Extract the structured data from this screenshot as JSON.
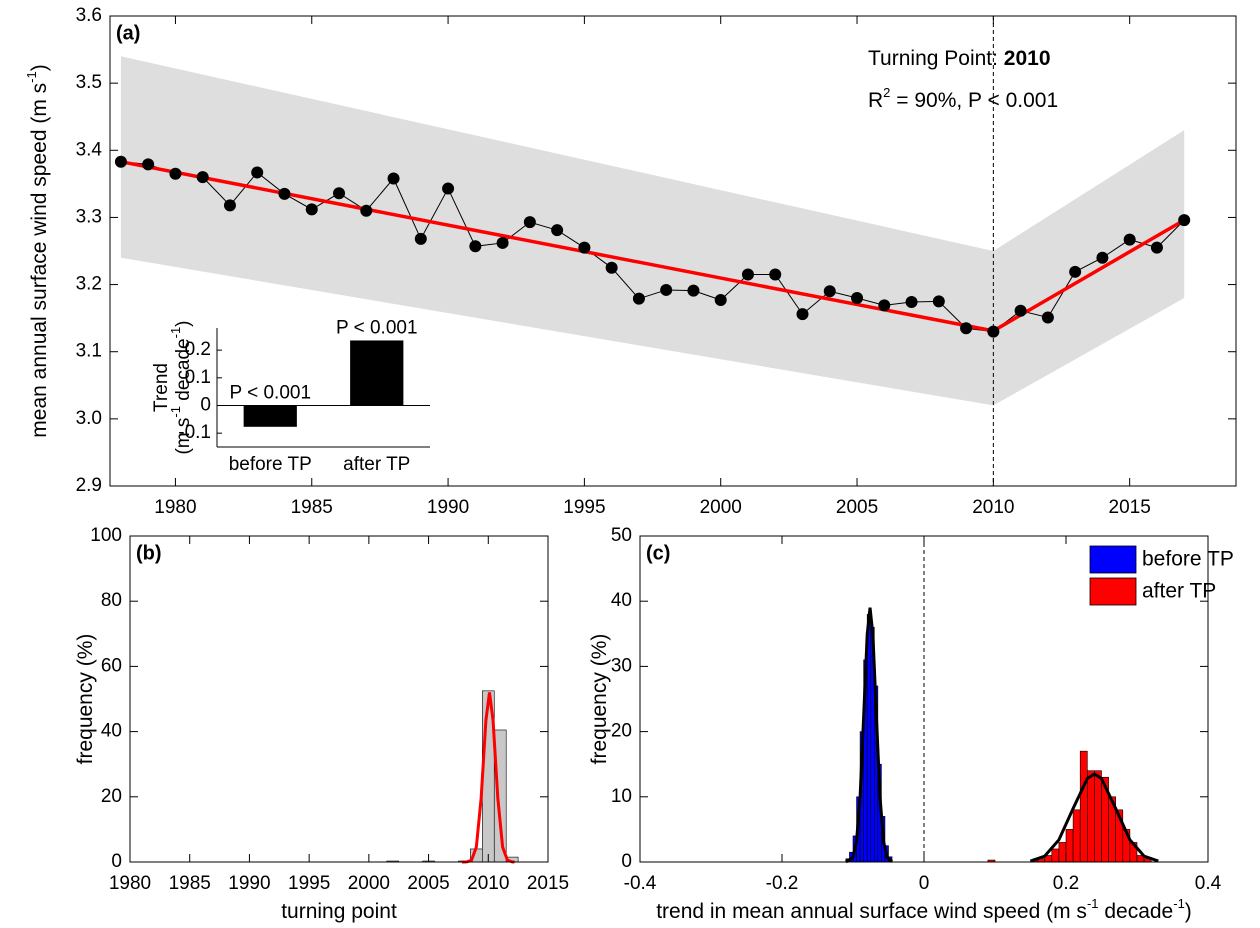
{
  "chart_data": [
    {
      "type": "line",
      "panel_label": "(a)",
      "ylabel_parts": [
        "mean annual surface wind speed (m s",
        "-1",
        ")"
      ],
      "x": [
        1978,
        1979,
        1980,
        1981,
        1982,
        1983,
        1984,
        1985,
        1986,
        1987,
        1988,
        1989,
        1990,
        1991,
        1992,
        1993,
        1994,
        1995,
        1996,
        1997,
        1998,
        1999,
        2000,
        2001,
        2002,
        2003,
        2004,
        2005,
        2006,
        2007,
        2008,
        2009,
        2010,
        2011,
        2012,
        2013,
        2014,
        2015,
        2016,
        2017
      ],
      "series": [
        {
          "color": "#000000",
          "values": [
            3.383,
            3.379,
            3.365,
            3.36,
            3.318,
            3.367,
            3.335,
            3.312,
            3.336,
            3.31,
            3.358,
            3.268,
            3.343,
            3.257,
            3.262,
            3.293,
            3.281,
            3.255,
            3.225,
            3.179,
            3.192,
            3.191,
            3.177,
            3.215,
            3.215,
            3.156,
            3.19,
            3.18,
            3.169,
            3.174,
            3.175,
            3.135,
            3.13,
            3.161,
            3.151,
            3.219,
            3.24,
            3.267,
            3.255,
            3.296
          ]
        },
        {
          "color": "#ff0000",
          "x": [
            1978,
            2010,
            2017
          ],
          "values": [
            3.383,
            3.131,
            3.296
          ]
        }
      ],
      "band": {
        "color": "#dedede",
        "x": [
          1978,
          2010,
          2017
        ],
        "upper": [
          3.54,
          3.25,
          3.43
        ],
        "lower": [
          3.24,
          3.02,
          3.18
        ]
      },
      "turning_point": {
        "label": "Turning Point: ",
        "value": 2010
      },
      "r2_parts": [
        "R",
        "2",
        " = 90%, P < 0.001"
      ],
      "xlim": [
        1977.6,
        2018.9
      ],
      "xticks": [
        1980,
        1985,
        1990,
        1995,
        2000,
        2005,
        2010,
        2015
      ],
      "ylim": [
        2.9,
        3.6
      ],
      "yticks": [
        2.9,
        {
          "value": 3,
          "label": "3.0"
        },
        3.1,
        3.2,
        3.3,
        3.4,
        3.5,
        3.6
      ],
      "inset": {
        "type": "bar",
        "categories": [
          "before TP",
          "after TP"
        ],
        "values": [
          -0.077,
          0.235
        ],
        "color": "#000000",
        "p_labels": [
          "P < 0.001",
          "P < 0.001"
        ],
        "ylabel_lines": [
          [
            "Trend"
          ],
          [
            "(m s",
            "-1",
            " decade",
            "-1",
            ")"
          ]
        ],
        "ylim": [
          -0.15,
          0.28
        ],
        "yticks": [
          -0.1,
          0,
          0.1,
          0.2
        ]
      }
    },
    {
      "type": "histogram",
      "panel_label": "(b)",
      "xlabel_parts": [
        "turning point"
      ],
      "ylabel_parts": [
        "frequency (%)"
      ],
      "series": [
        {
          "color": "#c8c8c8",
          "bins": [
            2001.5,
            2002.5,
            2003.5,
            2004.5,
            2005.5,
            2006.5,
            2007.5,
            2008.5,
            2009.5,
            2010.5,
            2011.5,
            2012.5
          ],
          "values": [
            0.3,
            0,
            0,
            0.3,
            0,
            0,
            0.3,
            4,
            52.5,
            40.5,
            1.5
          ]
        }
      ],
      "fits": [
        {
          "color": "#ff0000",
          "x": [
            2007.8,
            2008.2,
            2008.6,
            2009,
            2009.4,
            2009.8,
            2010.1,
            2010.4,
            2010.8,
            2011.2,
            2011.6,
            2012,
            2012.2
          ],
          "values": [
            0,
            0.04,
            0.58,
            4.6,
            19.5,
            43.4,
            52,
            43.4,
            19.5,
            4.6,
            0.58,
            0.04,
            0
          ]
        }
      ],
      "xlim": [
        1980,
        2015
      ],
      "xticks": [
        1980,
        1985,
        1990,
        1995,
        2000,
        2005,
        2010,
        2015
      ],
      "ylim": [
        0,
        100
      ],
      "yticks": [
        0,
        20,
        40,
        60,
        80,
        100
      ]
    },
    {
      "type": "histogram",
      "panel_label": "(c)",
      "xlabel_parts": [
        "trend in mean annual surface wind speed (m s",
        "-1",
        " decade",
        "-1",
        ")"
      ],
      "ylabel_parts": [
        "frequency (%)"
      ],
      "series": [
        {
          "name": "before TP",
          "color": "#0000ff",
          "bins": [
            -0.11,
            -0.105,
            -0.1,
            -0.095,
            -0.09,
            -0.085,
            -0.08,
            -0.075,
            -0.07,
            -0.065,
            -0.06,
            -0.055,
            -0.05,
            -0.045
          ],
          "values": [
            0.5,
            1.5,
            4,
            10,
            20,
            31,
            38,
            36,
            27,
            15,
            7,
            2.5,
            0.8
          ]
        },
        {
          "name": "after TP",
          "color": "#ff0000",
          "bins": [
            0.09,
            0.1,
            0.11,
            0.12,
            0.13,
            0.14,
            0.15,
            0.16,
            0.17,
            0.18,
            0.19,
            0.2,
            0.21,
            0.22,
            0.23,
            0.24,
            0.25,
            0.26,
            0.27,
            0.28,
            0.29,
            0.3,
            0.31,
            0.32
          ],
          "values": [
            0.3,
            0,
            0,
            0,
            0,
            0,
            0.3,
            0.5,
            1,
            2,
            3,
            5,
            8,
            17,
            14,
            14,
            13,
            10,
            8,
            5,
            3,
            1,
            0.5
          ]
        }
      ],
      "fits": [
        {
          "color": "#000000",
          "x": [
            -0.11,
            -0.1,
            -0.095,
            -0.09,
            -0.085,
            -0.08,
            -0.076,
            -0.072,
            -0.067,
            -0.062,
            -0.057,
            -0.052,
            -0.045
          ],
          "values": [
            0.01,
            0.7,
            3.2,
            10,
            22.3,
            34.9,
            39,
            34.9,
            22.3,
            10,
            3.2,
            0.7,
            0.05
          ]
        },
        {
          "color": "#000000",
          "x": [
            0.15,
            0.17,
            0.19,
            0.21,
            0.23,
            0.24,
            0.25,
            0.27,
            0.29,
            0.31,
            0.33
          ],
          "values": [
            0.15,
            0.9,
            3.4,
            8.2,
            12.8,
            13.5,
            12.8,
            8.2,
            3.4,
            0.9,
            0.15
          ]
        }
      ],
      "vline": 0,
      "legend": "upper right",
      "xlim": [
        -0.4,
        0.4
      ],
      "xticks": [
        -0.4,
        -0.2,
        0,
        0.2,
        0.4
      ],
      "ylim": [
        0,
        50
      ],
      "yticks": [
        0,
        10,
        20,
        30,
        40,
        50
      ]
    }
  ]
}
